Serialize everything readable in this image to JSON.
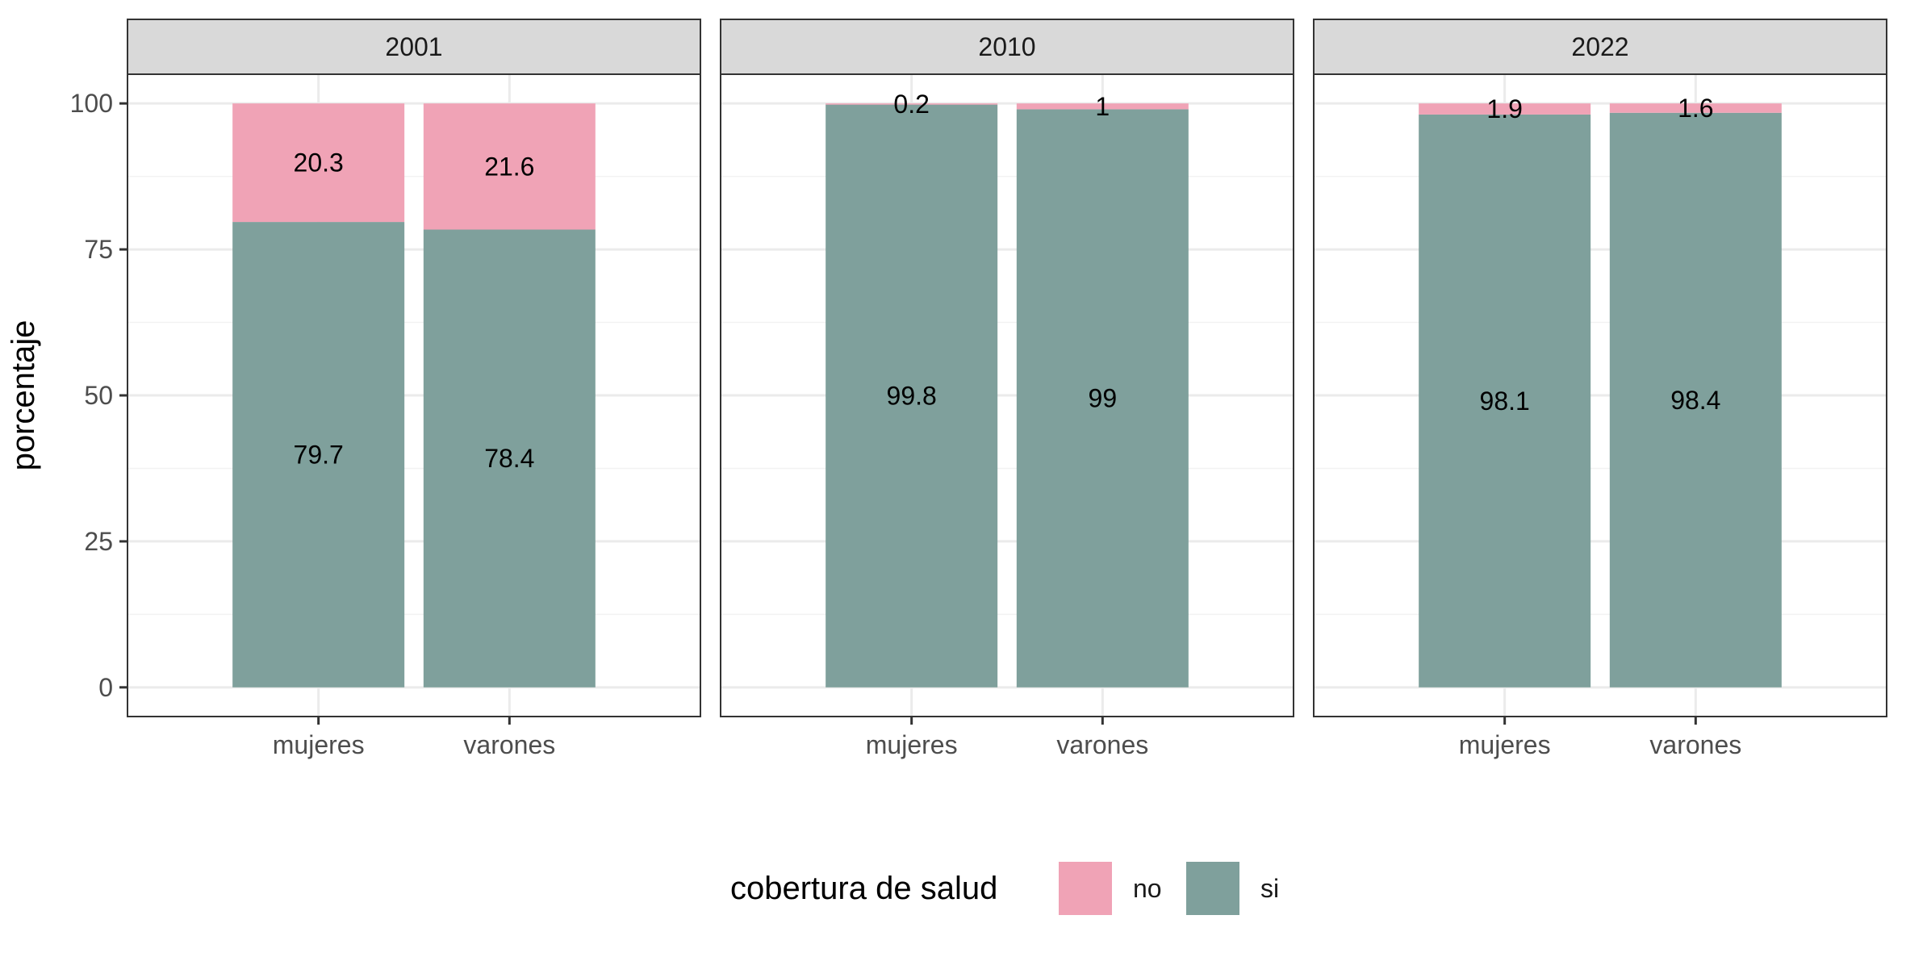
{
  "chart_data": {
    "type": "bar",
    "stacked": true,
    "facets": [
      {
        "label": "2001",
        "categories": [
          "mujeres",
          "varones"
        ],
        "series": [
          {
            "name": "si",
            "values": [
              79.7,
              78.4
            ]
          },
          {
            "name": "no",
            "values": [
              20.3,
              21.6
            ]
          }
        ],
        "labels": {
          "si": [
            "79.7",
            "78.4"
          ],
          "no": [
            "20.3",
            "21.6"
          ]
        }
      },
      {
        "label": "2010",
        "categories": [
          "mujeres",
          "varones"
        ],
        "series": [
          {
            "name": "si",
            "values": [
              99.8,
              99
            ]
          },
          {
            "name": "no",
            "values": [
              0.2,
              1
            ]
          }
        ],
        "labels": {
          "si": [
            "99.8",
            "99"
          ],
          "no": [
            "0.2",
            "1"
          ]
        }
      },
      {
        "label": "2022",
        "categories": [
          "mujeres",
          "varones"
        ],
        "series": [
          {
            "name": "si",
            "values": [
              98.1,
              98.4
            ]
          },
          {
            "name": "no",
            "values": [
              1.9,
              1.6
            ]
          }
        ],
        "labels": {
          "si": [
            "98.1",
            "98.4"
          ],
          "no": [
            "1.9",
            "1.6"
          ]
        }
      }
    ],
    "ylabel": "porcentaje",
    "xlabel": "",
    "ylim": [
      -5,
      105
    ],
    "yticks": [
      0,
      25,
      50,
      75,
      100
    ],
    "yticks_labels": [
      "0",
      "25",
      "50",
      "75",
      "100"
    ],
    "grid": true,
    "legend": {
      "title": "cobertura de salud",
      "position": "bottom",
      "entries": [
        {
          "name": "no",
          "color": "#F0A3B6"
        },
        {
          "name": "si",
          "color": "#7FA09C"
        }
      ]
    },
    "colors": {
      "no": "#F0A3B6",
      "si": "#7FA09C"
    }
  }
}
